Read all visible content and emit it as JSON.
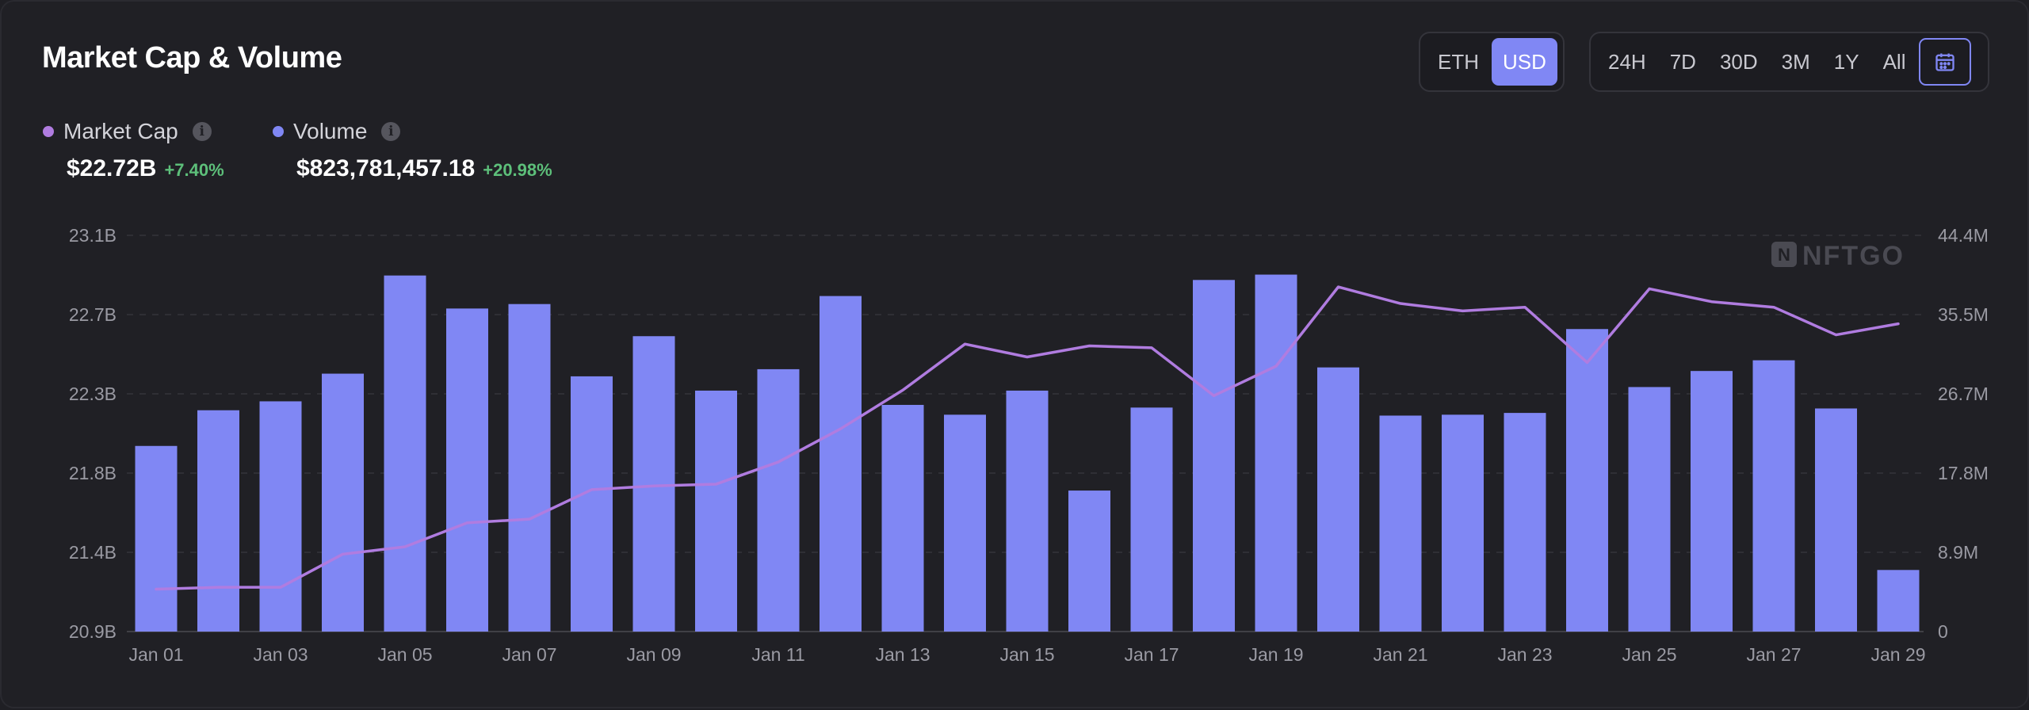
{
  "header": {
    "title": "Market Cap & Volume",
    "currency_options": [
      "ETH",
      "USD"
    ],
    "currency_selected": "USD",
    "range_options": [
      "24H",
      "7D",
      "30D",
      "3M",
      "1Y",
      "All"
    ],
    "calendar_icon": "calendar-icon"
  },
  "legend": {
    "market_cap": {
      "label": "Market Cap",
      "value": "$22.72B",
      "change": "+7.40%",
      "color": "#b07ce0"
    },
    "volume": {
      "label": "Volume",
      "value": "$823,781,457.18",
      "change": "+20.98%",
      "color": "#8087f4"
    },
    "change_color": "#5dbf7a"
  },
  "watermark": "NFTGO",
  "chart_data": {
    "type": "bar+line",
    "categories": [
      "Jan 01",
      "Jan 02",
      "Jan 03",
      "Jan 04",
      "Jan 05",
      "Jan 06",
      "Jan 07",
      "Jan 08",
      "Jan 09",
      "Jan 10",
      "Jan 11",
      "Jan 12",
      "Jan 13",
      "Jan 14",
      "Jan 15",
      "Jan 16",
      "Jan 17",
      "Jan 18",
      "Jan 19",
      "Jan 20",
      "Jan 21",
      "Jan 22",
      "Jan 23",
      "Jan 24",
      "Jan 25",
      "Jan 26",
      "Jan 27",
      "Jan 28",
      "Jan 29"
    ],
    "x_tick_labels": [
      "Jan 01",
      "Jan 03",
      "Jan 05",
      "Jan 07",
      "Jan 09",
      "Jan 11",
      "Jan 13",
      "Jan 15",
      "Jan 17",
      "Jan 19",
      "Jan 21",
      "Jan 23",
      "Jan 25",
      "Jan 27",
      "Jan 29"
    ],
    "series": [
      {
        "name": "Volume",
        "kind": "bar",
        "axis": "right",
        "color": "#8087f4",
        "values": [
          20.8,
          24.8,
          25.8,
          28.9,
          39.9,
          36.2,
          36.7,
          28.6,
          33.1,
          27.0,
          29.4,
          37.6,
          25.4,
          24.3,
          27.0,
          15.8,
          25.1,
          39.4,
          40.0,
          29.6,
          24.2,
          24.3,
          24.5,
          33.9,
          27.4,
          29.2,
          30.4,
          25.0,
          6.9
        ]
      },
      {
        "name": "Market Cap",
        "kind": "line",
        "axis": "left",
        "color": "#b07ce0",
        "values": [
          21.18,
          21.19,
          21.19,
          21.37,
          21.41,
          21.54,
          21.56,
          21.72,
          21.74,
          21.75,
          21.87,
          22.05,
          22.26,
          22.51,
          22.44,
          22.5,
          22.49,
          22.23,
          22.39,
          22.82,
          22.73,
          22.69,
          22.71,
          22.41,
          22.81,
          22.74,
          22.71,
          22.56,
          22.62
        ]
      }
    ],
    "y_left": {
      "ticks": [
        "20.9B",
        "21.4B",
        "21.8B",
        "22.3B",
        "22.7B",
        "23.1B"
      ],
      "range": [
        20.95,
        23.1
      ],
      "unit": "B"
    },
    "y_right": {
      "ticks": [
        "0",
        "8.9M",
        "17.8M",
        "26.7M",
        "35.5M",
        "44.4M"
      ],
      "range": [
        0,
        44.4
      ],
      "unit": "M"
    },
    "grid": true
  }
}
